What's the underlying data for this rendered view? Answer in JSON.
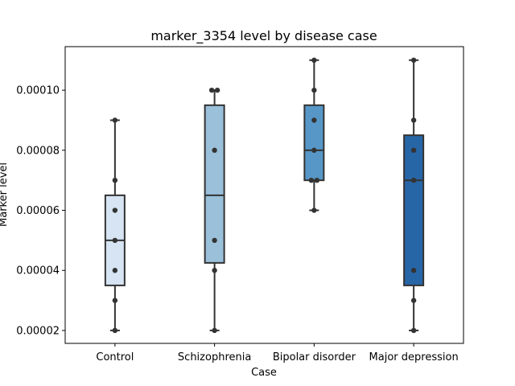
{
  "chart_data": {
    "type": "box",
    "title": "marker_3354 level by disease case",
    "xlabel": "Case",
    "ylabel": "Marker level",
    "ylim": [
      1.57e-05,
      0.0001145
    ],
    "yticks": [
      "0.00002",
      "0.00004",
      "0.00006",
      "0.00008",
      "0.00010"
    ],
    "ytick_values": [
      2e-05,
      4e-05,
      6e-05,
      8e-05,
      0.0001
    ],
    "grid": false,
    "categories": [
      "Control",
      "Schizophrenia",
      "Bipolar disorder",
      "Major depression"
    ],
    "boxes": [
      {
        "q1": 3.5e-05,
        "median": 5e-05,
        "q3": 6.5e-05,
        "whisker_low": 2e-05,
        "whisker_high": 9e-05,
        "color": "#d6e4f3"
      },
      {
        "q1": 4.25e-05,
        "median": 6.5e-05,
        "q3": 9.5e-05,
        "whisker_low": 2e-05,
        "whisker_high": 0.0001,
        "color": "#9ac0da"
      },
      {
        "q1": 7e-05,
        "median": 8e-05,
        "q3": 9.5e-05,
        "whisker_low": 6e-05,
        "whisker_high": 0.00011,
        "color": "#5797c7"
      },
      {
        "q1": 3.5e-05,
        "median": 7e-05,
        "q3": 8.5e-05,
        "whisker_low": 2e-05,
        "whisker_high": 0.00011,
        "color": "#2766a6"
      }
    ],
    "points": [
      [
        2e-05,
        3e-05,
        4e-05,
        5e-05,
        6e-05,
        7e-05,
        9e-05
      ],
      [
        2e-05,
        4e-05,
        5e-05,
        8e-05,
        0.0001,
        0.0001
      ],
      [
        6e-05,
        7e-05,
        7e-05,
        8e-05,
        9e-05,
        0.0001,
        0.00011
      ],
      [
        2e-05,
        3e-05,
        4e-05,
        7e-05,
        8e-05,
        9e-05,
        0.00011
      ]
    ],
    "line_color": "#333333",
    "point_color": "#333333"
  }
}
